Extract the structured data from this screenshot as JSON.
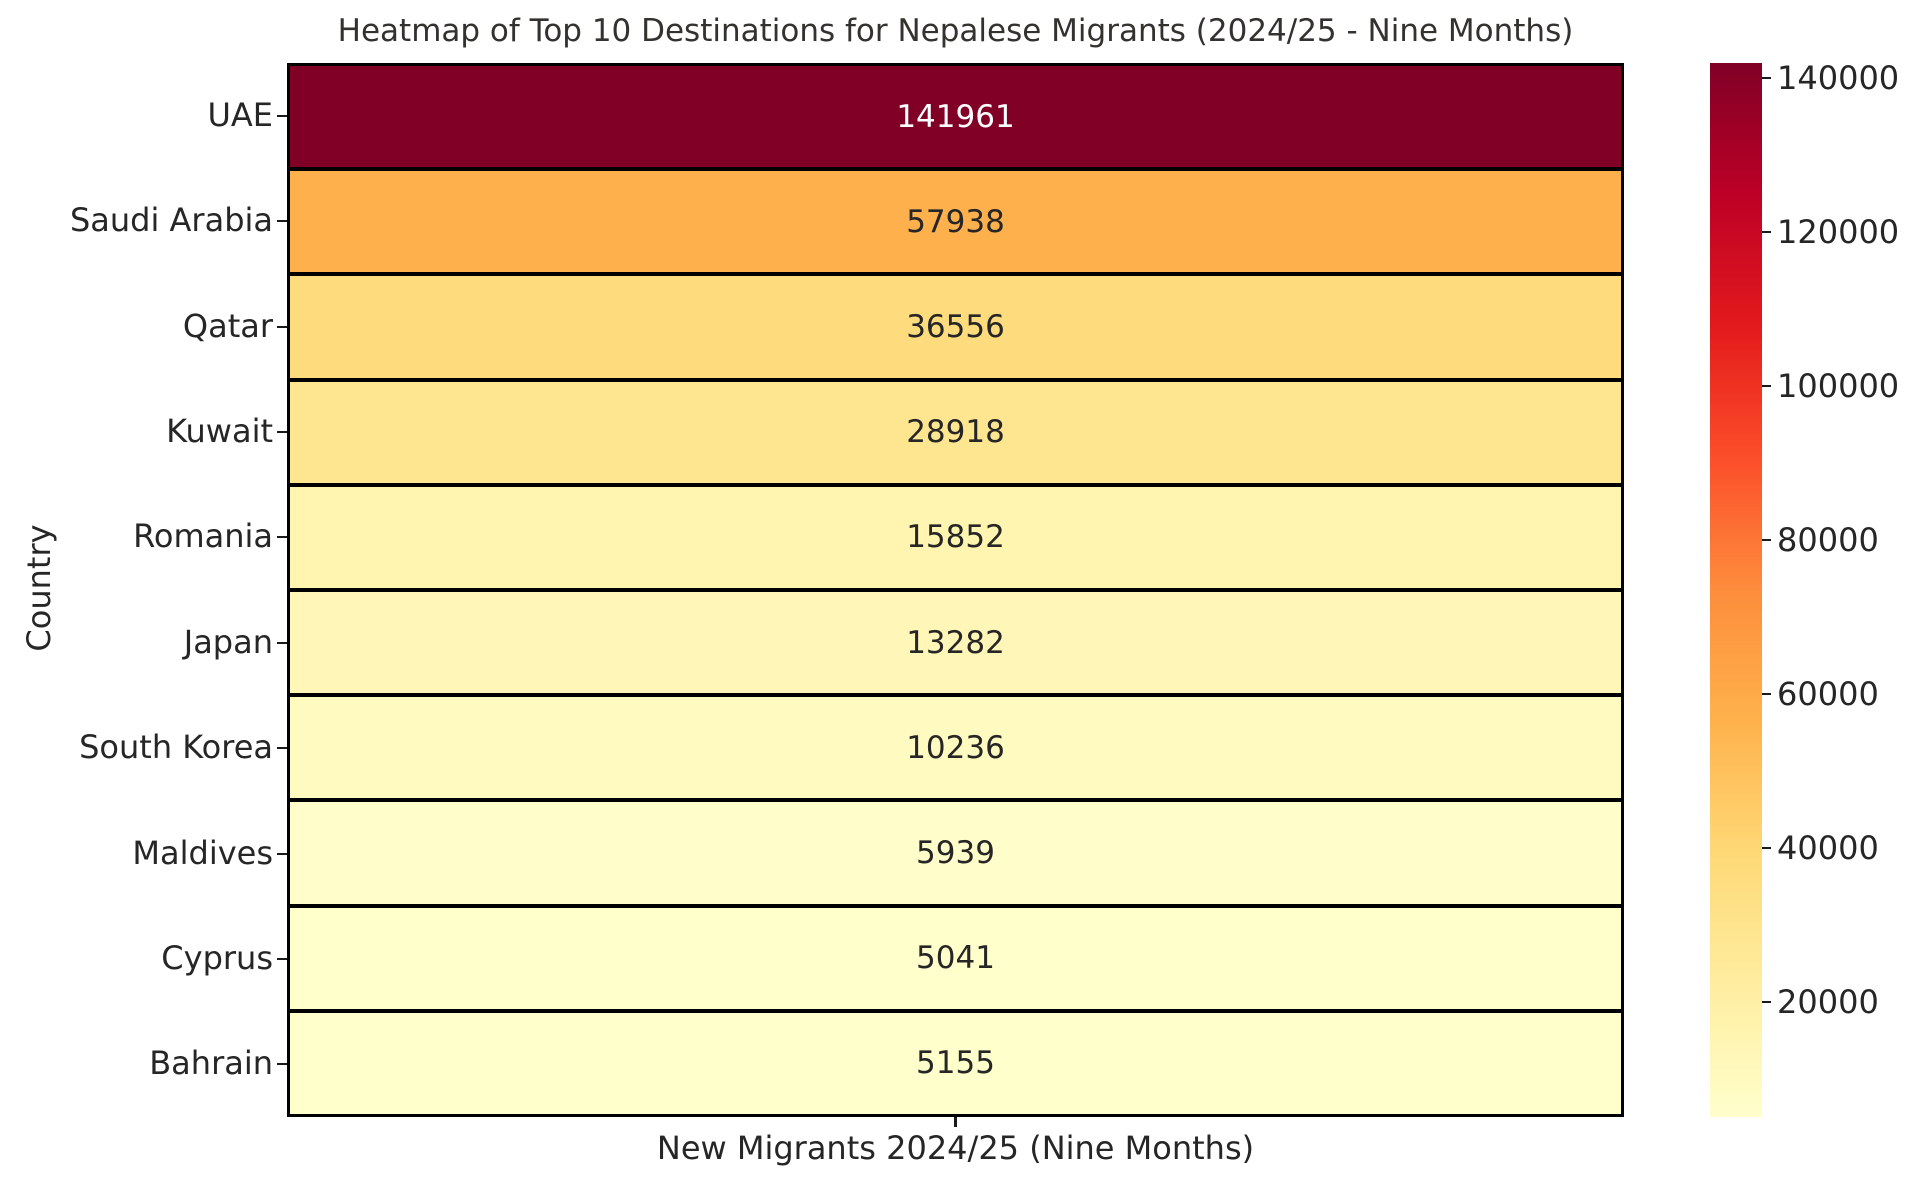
{
  "chart_data": {
    "type": "heatmap",
    "title": "Heatmap of Top 10 Destinations for Nepalese Migrants (2024/25 - Nine Months)",
    "xlabel": "New Migrants 2024/25 (Nine Months)",
    "ylabel": "Country",
    "categories": [
      "UAE",
      "Saudi Arabia",
      "Qatar",
      "Kuwait",
      "Romania",
      "Japan",
      "South Korea",
      "Maldives",
      "Cyprus",
      "Bahrain"
    ],
    "values": [
      141961,
      57938,
      36556,
      28918,
      15852,
      13282,
      10236,
      5939,
      5041,
      5155
    ],
    "cell_colors": [
      "#800026",
      "#feb04d",
      "#fedc7d",
      "#fee58f",
      "#fff4b0",
      "#fff6b7",
      "#fffabf",
      "#fffeca",
      "#ffffcc",
      "#ffffcc"
    ],
    "cell_text_colors": [
      "#ffffff",
      "#262626",
      "#262626",
      "#262626",
      "#262626",
      "#262626",
      "#262626",
      "#262626",
      "#262626",
      "#262626"
    ],
    "grid_line_color": "#000000",
    "colormap": "YlOrRd",
    "grid": false,
    "legend_position": "right-colorbar",
    "colorbar": {
      "min": 5041,
      "max": 141961,
      "ticks": [
        20000,
        40000,
        60000,
        80000,
        100000,
        120000,
        140000
      ],
      "tick_labels": [
        "20000",
        "40000",
        "60000",
        "80000",
        "100000",
        "120000",
        "140000"
      ],
      "gradient_stops": [
        {
          "pos": 0.0,
          "color": "#ffffcc"
        },
        {
          "pos": 0.125,
          "color": "#ffeda0"
        },
        {
          "pos": 0.25,
          "color": "#fed976"
        },
        {
          "pos": 0.375,
          "color": "#feb24c"
        },
        {
          "pos": 0.5,
          "color": "#fd8d3c"
        },
        {
          "pos": 0.625,
          "color": "#fc4e2a"
        },
        {
          "pos": 0.75,
          "color": "#e31a1c"
        },
        {
          "pos": 0.875,
          "color": "#bd0026"
        },
        {
          "pos": 1.0,
          "color": "#800026"
        }
      ]
    }
  }
}
